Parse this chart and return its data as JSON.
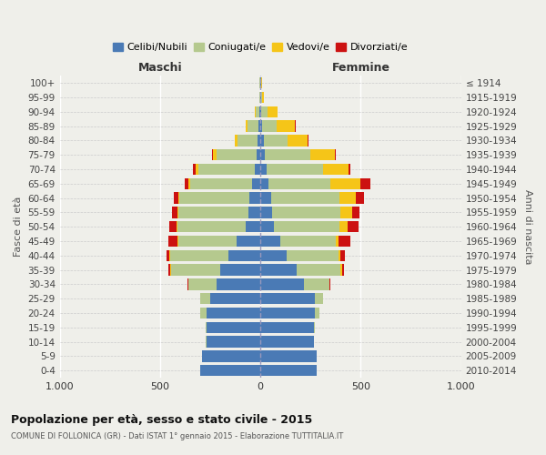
{
  "age_groups": [
    "0-4",
    "5-9",
    "10-14",
    "15-19",
    "20-24",
    "25-29",
    "30-34",
    "35-39",
    "40-44",
    "45-49",
    "50-54",
    "55-59",
    "60-64",
    "65-69",
    "70-74",
    "75-79",
    "80-84",
    "85-89",
    "90-94",
    "95-99",
    "100+"
  ],
  "birth_years": [
    "2010-2014",
    "2005-2009",
    "2000-2004",
    "1995-1999",
    "1990-1994",
    "1985-1989",
    "1980-1984",
    "1975-1979",
    "1970-1974",
    "1965-1969",
    "1960-1964",
    "1955-1959",
    "1950-1954",
    "1945-1949",
    "1940-1944",
    "1935-1939",
    "1930-1934",
    "1925-1929",
    "1920-1924",
    "1915-1919",
    "≤ 1914"
  ],
  "males": {
    "celibi": [
      300,
      290,
      270,
      270,
      270,
      250,
      220,
      200,
      160,
      120,
      75,
      60,
      55,
      40,
      30,
      20,
      15,
      10,
      5,
      2,
      2
    ],
    "coniugati": [
      0,
      0,
      2,
      5,
      30,
      50,
      140,
      245,
      290,
      290,
      340,
      350,
      350,
      310,
      280,
      200,
      100,
      55,
      20,
      3,
      2
    ],
    "vedovi": [
      0,
      0,
      0,
      0,
      0,
      0,
      0,
      3,
      3,
      5,
      5,
      5,
      5,
      10,
      15,
      15,
      15,
      8,
      5,
      0,
      0
    ],
    "divorziati": [
      0,
      0,
      0,
      0,
      0,
      0,
      5,
      10,
      15,
      45,
      35,
      25,
      20,
      15,
      10,
      5,
      0,
      0,
      0,
      0,
      0
    ]
  },
  "females": {
    "nubili": [
      280,
      280,
      265,
      265,
      270,
      270,
      215,
      180,
      130,
      100,
      65,
      60,
      55,
      40,
      30,
      20,
      15,
      10,
      5,
      3,
      2
    ],
    "coniugate": [
      0,
      0,
      0,
      5,
      25,
      40,
      130,
      220,
      260,
      275,
      330,
      340,
      340,
      310,
      280,
      230,
      120,
      70,
      30,
      5,
      2
    ],
    "vedove": [
      0,
      0,
      0,
      0,
      0,
      0,
      0,
      5,
      10,
      15,
      40,
      55,
      80,
      150,
      130,
      120,
      100,
      90,
      50,
      8,
      3
    ],
    "divorziate": [
      0,
      0,
      0,
      0,
      0,
      0,
      5,
      10,
      20,
      60,
      55,
      40,
      40,
      50,
      10,
      5,
      5,
      5,
      0,
      0,
      0
    ]
  },
  "colors": {
    "celibi_nubili": "#4a7ab5",
    "coniugati": "#b5c98e",
    "vedovi": "#f5c518",
    "divorziati": "#cc1111"
  },
  "title": "Popolazione per età, sesso e stato civile - 2015",
  "subtitle": "COMUNE DI FOLLONICA (GR) - Dati ISTAT 1° gennaio 2015 - Elaborazione TUTTITALIA.IT",
  "xlabel_left": "Maschi",
  "xlabel_right": "Femmine",
  "ylabel_left": "Fasce di età",
  "ylabel_right": "Anni di nascita",
  "xlim": 1000,
  "xticks": [
    -1000,
    -500,
    0,
    500,
    1000
  ],
  "xticklabels": [
    "1.000",
    "500",
    "0",
    "500",
    "1.000"
  ],
  "legend_labels": [
    "Celibi/Nubili",
    "Coniugati/e",
    "Vedovi/e",
    "Divorziati/e"
  ],
  "background_color": "#efefea"
}
